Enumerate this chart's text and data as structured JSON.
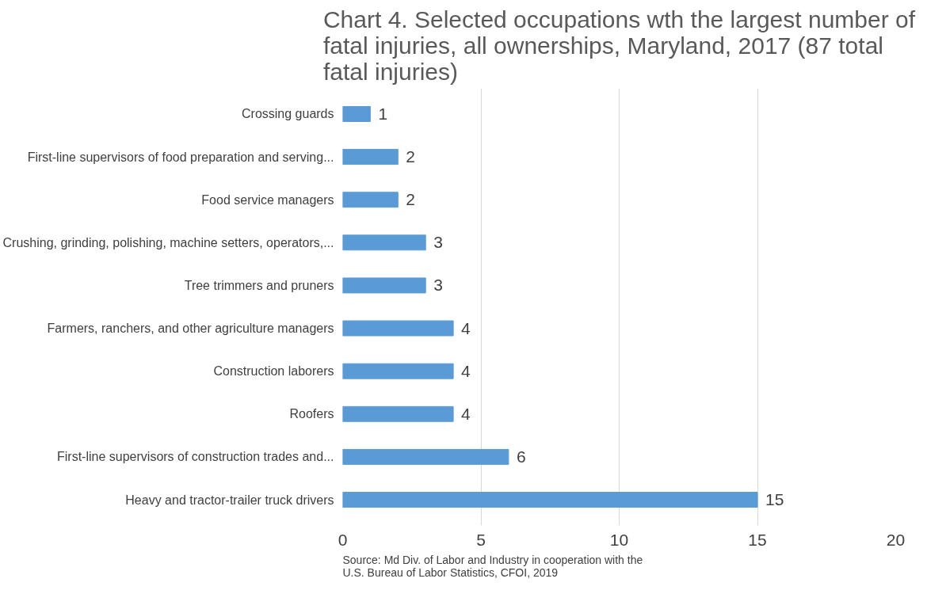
{
  "chart_data": {
    "type": "bar",
    "orientation": "horizontal",
    "title": "Chart 4. Selected occupations wth the largest number of fatal injuries, all ownerships, Maryland, 2017 (87 total fatal injuries)",
    "categories": [
      "Crossing guards",
      "First-line supervisors of food preparation and serving...",
      "Food service managers",
      "Crushing, grinding, polishing, machine setters, operators,...",
      "Tree trimmers and pruners",
      "Farmers, ranchers, and other agriculture managers",
      "Construction laborers",
      "Roofers",
      "First-line supervisors of construction trades and...",
      "Heavy and tractor-trailer truck drivers"
    ],
    "values": [
      1,
      2,
      2,
      3,
      3,
      4,
      4,
      4,
      6,
      15
    ],
    "color": "#5b9bd5",
    "xlim": [
      0,
      20
    ],
    "xticks": [
      0,
      5,
      10,
      15,
      20
    ],
    "grid": "x",
    "data_labels": true,
    "annotations": [
      "Source: Md Div. of Labor and Industry in cooperation with the U.S. Bureau of Labor Statistics, CFOI, 2019"
    ]
  }
}
